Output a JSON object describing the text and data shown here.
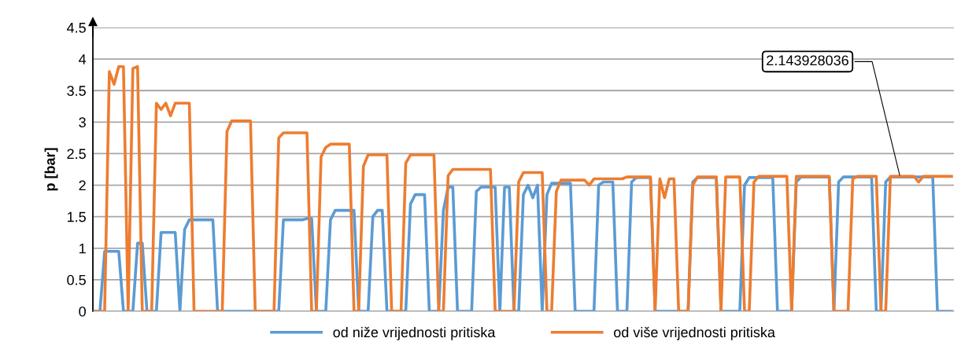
{
  "chart_data": {
    "type": "line",
    "ylabel": "p [bar]",
    "categories": [
      null,
      null,
      null,
      null,
      null,
      null,
      null,
      null,
      null,
      null,
      null,
      null,
      null,
      null,
      null,
      null,
      null,
      null,
      null,
      null,
      null,
      null,
      null,
      null,
      null,
      null,
      null,
      null,
      null,
      null,
      null,
      null,
      null,
      null,
      null,
      null,
      null,
      null,
      null,
      null,
      null,
      null,
      null,
      null,
      null,
      null,
      null,
      null,
      null,
      null,
      null,
      null,
      null,
      null,
      null,
      null,
      null,
      null,
      null,
      null,
      null,
      null,
      null,
      null,
      null,
      null,
      null,
      null,
      null,
      null,
      null,
      null,
      null,
      null,
      null,
      null,
      null,
      null,
      null,
      null,
      null,
      null,
      null,
      null,
      null,
      null,
      null,
      null,
      null,
      null,
      null,
      null,
      null,
      null,
      null,
      null,
      null,
      null,
      null,
      null,
      null,
      null,
      null,
      null,
      null,
      null,
      null,
      null,
      null,
      null,
      null,
      null,
      null,
      null,
      null,
      null,
      null,
      null,
      null,
      null,
      null,
      null,
      null,
      null,
      null,
      null,
      null,
      null,
      null,
      null,
      null,
      null,
      null,
      null,
      null,
      null,
      null,
      null,
      null,
      null,
      null,
      null,
      null,
      null,
      null,
      null,
      null,
      null,
      null,
      null,
      null,
      null,
      null,
      null,
      null,
      null,
      null,
      null,
      null,
      null,
      null,
      null,
      null,
      null,
      null,
      null,
      null,
      null,
      null,
      null,
      null,
      null,
      null,
      null,
      null,
      null,
      null,
      null,
      null,
      null,
      null,
      null,
      null
    ],
    "series": [
      {
        "name": "od niže vrijednosti pritiska",
        "color": "#5b9bd5",
        "values": [
          0,
          0,
          0.95,
          0.95,
          0.95,
          0.95,
          0,
          0,
          0,
          1.08,
          1.08,
          0,
          0,
          0,
          1.25,
          1.25,
          1.25,
          1.25,
          0,
          1.3,
          1.45,
          1.45,
          1.45,
          1.45,
          1.45,
          1.45,
          0,
          0,
          0,
          0,
          0,
          0,
          0,
          0,
          0,
          0,
          0,
          0,
          0,
          0,
          1.45,
          1.45,
          1.45,
          1.45,
          1.45,
          1.47,
          1.47,
          0,
          0,
          0,
          1.45,
          1.6,
          1.6,
          1.6,
          1.6,
          1.6,
          0,
          0,
          0,
          1.5,
          1.6,
          1.6,
          0,
          0,
          0,
          0,
          0,
          1.7,
          1.85,
          1.85,
          1.85,
          0,
          0,
          0,
          1.6,
          1.97,
          1.97,
          0,
          0,
          0,
          0,
          1.9,
          1.97,
          1.97,
          1.97,
          1.97,
          0,
          1.97,
          1.97,
          0,
          0,
          1.85,
          2,
          1.8,
          2,
          0,
          1.85,
          2.03,
          2.03,
          2.03,
          2.03,
          2.03,
          0,
          0,
          0,
          0,
          0,
          2,
          2.05,
          2.05,
          2.05,
          0,
          0,
          0,
          2.05,
          2.12,
          2.12,
          2.12,
          2.12,
          0,
          0,
          0,
          0,
          0,
          0,
          0,
          0,
          2.05,
          2.12,
          2.12,
          2.12,
          2.12,
          2.12,
          0,
          0,
          0,
          0,
          0,
          2,
          2.12,
          2.12,
          2.12,
          2.12,
          2.12,
          2.12,
          0,
          0,
          0,
          0,
          2.05,
          2.13,
          2.13,
          2.13,
          2.13,
          2.13,
          2.13,
          2.13,
          0,
          2.05,
          2.13,
          2.13,
          2.13,
          2.13,
          2.13,
          2.13,
          2.13,
          0,
          0,
          2.05,
          2.13,
          2.13,
          2.13,
          2.13,
          2.13,
          2.13,
          2.13,
          2.13,
          2.13,
          2.13,
          0,
          0,
          0,
          0
        ]
      },
      {
        "name": "od više vrijednosti pritiska",
        "color": "#ed7d31",
        "values": [
          0,
          0,
          0,
          3.8,
          3.6,
          3.88,
          3.88,
          0,
          3.85,
          3.88,
          0,
          0,
          0,
          3.3,
          3.2,
          3.3,
          3.1,
          3.3,
          3.3,
          3.3,
          3.3,
          0,
          0,
          0,
          0,
          0,
          0,
          0,
          2.85,
          3.02,
          3.02,
          3.02,
          3.02,
          3.02,
          0,
          0,
          0,
          0,
          0,
          2.75,
          2.83,
          2.83,
          2.83,
          2.83,
          2.83,
          2.83,
          0,
          0,
          2.45,
          2.6,
          2.65,
          2.65,
          2.65,
          2.65,
          2.65,
          0,
          0,
          2.3,
          2.48,
          2.48,
          2.48,
          2.48,
          2.48,
          0,
          0,
          0,
          2.35,
          2.48,
          2.48,
          2.48,
          2.48,
          2.48,
          2.48,
          0,
          0,
          2.15,
          2.25,
          2.25,
          2.25,
          2.25,
          2.25,
          2.25,
          2.25,
          2.25,
          2.25,
          0,
          0,
          0,
          0,
          0,
          2.05,
          2.2,
          2.2,
          2.2,
          2.2,
          2.2,
          0,
          0,
          1.9,
          2.08,
          2.08,
          2.08,
          2.08,
          2.08,
          2.08,
          2.0,
          2.1,
          2.1,
          2.1,
          2.1,
          2.1,
          2.1,
          2.1,
          2.13,
          2.13,
          2.13,
          2.13,
          2.13,
          2.13,
          0,
          2.1,
          1.8,
          2.1,
          2.1,
          0,
          0,
          0,
          2,
          2.13,
          2.13,
          2.13,
          2.13,
          2.13,
          0,
          2.13,
          2.13,
          2.13,
          2.13,
          0,
          0,
          2.05,
          2.14,
          2.14,
          2.14,
          2.14,
          2.14,
          2.14,
          2.14,
          0,
          2.14,
          2.14,
          2.14,
          2.14,
          2.14,
          2.14,
          2.14,
          2.14,
          0,
          0,
          0,
          0,
          2.1,
          2.14,
          2.14,
          2.14,
          2.14,
          2.14,
          0,
          0,
          2.14,
          2.14,
          2.14,
          2.14,
          2.14,
          2.14,
          2.05,
          2.14,
          2.14,
          2.14,
          2.14,
          2.14,
          2.14,
          2.14
        ]
      }
    ],
    "ylim": [
      0,
      4.5
    ],
    "yticks": [
      0,
      0.5,
      1,
      1.5,
      2,
      2.5,
      3,
      3.5,
      4,
      4.5
    ],
    "grid": "y",
    "legend": "bottom",
    "tick_labels": "y",
    "line_style": "solid",
    "marker": "none",
    "annotations": [
      "2.143928036"
    ]
  }
}
